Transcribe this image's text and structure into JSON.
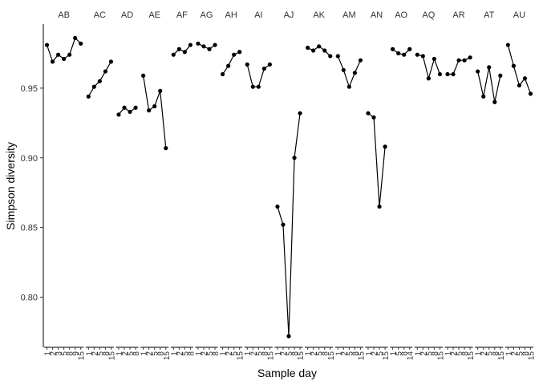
{
  "chart_data": {
    "type": "line",
    "xlabel": "Sample day",
    "ylabel": "Simpson diversity",
    "color": "#000000",
    "ylim": [
      0.764,
      0.996
    ],
    "yticks": [
      {
        "value": 0.8,
        "label": "0.80"
      },
      {
        "value": 0.85,
        "label": "0.85"
      },
      {
        "value": 0.9,
        "label": "0.90"
      },
      {
        "value": 0.95,
        "label": "0.95"
      }
    ],
    "facets": [
      {
        "title": "AB",
        "categories": [
          "1",
          "2",
          "3",
          "5",
          "8",
          "9",
          "15"
        ],
        "values": [
          0.981,
          0.969,
          0.974,
          0.971,
          0.974,
          0.986,
          0.982
        ]
      },
      {
        "title": "AC",
        "categories": [
          "1",
          "2",
          "5",
          "8",
          "15"
        ],
        "values": [
          0.944,
          0.951,
          0.955,
          0.962,
          0.969
        ]
      },
      {
        "title": "AD",
        "categories": [
          "1",
          "2",
          "5",
          "8"
        ],
        "values": [
          0.931,
          0.936,
          0.933,
          0.936
        ]
      },
      {
        "title": "AE",
        "categories": [
          "1",
          "2",
          "5",
          "8",
          "15"
        ],
        "values": [
          0.959,
          0.934,
          0.937,
          0.948,
          0.907
        ]
      },
      {
        "title": "AF",
        "categories": [
          "1",
          "2",
          "5",
          "8"
        ],
        "values": [
          0.974,
          0.978,
          0.976,
          0.981
        ]
      },
      {
        "title": "AG",
        "categories": [
          "1",
          "2",
          "5",
          "8"
        ],
        "values": [
          0.982,
          0.98,
          0.978,
          0.981
        ]
      },
      {
        "title": "AH",
        "categories": [
          "1",
          "2",
          "5",
          "15"
        ],
        "values": [
          0.96,
          0.966,
          0.974,
          0.976
        ]
      },
      {
        "title": "AI",
        "categories": [
          "1",
          "2",
          "5",
          "8",
          "15"
        ],
        "values": [
          0.967,
          0.951,
          0.951,
          0.964,
          0.967
        ]
      },
      {
        "title": "AJ",
        "categories": [
          "1",
          "2",
          "5",
          "8",
          "15"
        ],
        "values": [
          0.865,
          0.852,
          0.772,
          0.9,
          0.932
        ]
      },
      {
        "title": "AK",
        "categories": [
          "1",
          "2",
          "5",
          "8",
          "15"
        ],
        "values": [
          0.979,
          0.977,
          0.98,
          0.977,
          0.973
        ]
      },
      {
        "title": "AM",
        "categories": [
          "1",
          "2",
          "5",
          "8",
          "15"
        ],
        "values": [
          0.973,
          0.963,
          0.951,
          0.961,
          0.97
        ]
      },
      {
        "title": "AN",
        "categories": [
          "1",
          "2",
          "5",
          "15"
        ],
        "values": [
          0.932,
          0.929,
          0.865,
          0.908
        ]
      },
      {
        "title": "AO",
        "categories": [
          "1",
          "5",
          "8",
          "14"
        ],
        "values": [
          0.978,
          0.975,
          0.974,
          0.978
        ]
      },
      {
        "title": "AQ",
        "categories": [
          "1",
          "2",
          "5",
          "8",
          "15"
        ],
        "values": [
          0.974,
          0.973,
          0.957,
          0.971,
          0.96
        ]
      },
      {
        "title": "AR",
        "categories": [
          "1",
          "2",
          "5",
          "8",
          "15"
        ],
        "values": [
          0.96,
          0.96,
          0.97,
          0.97,
          0.972
        ]
      },
      {
        "title": "AT",
        "categories": [
          "1",
          "2",
          "5",
          "8",
          "15"
        ],
        "values": [
          0.962,
          0.944,
          0.965,
          0.94,
          0.959
        ]
      },
      {
        "title": "AU",
        "categories": [
          "1",
          "2",
          "5",
          "8",
          "15"
        ],
        "values": [
          0.981,
          0.966,
          0.952,
          0.957,
          0.946
        ]
      }
    ]
  }
}
